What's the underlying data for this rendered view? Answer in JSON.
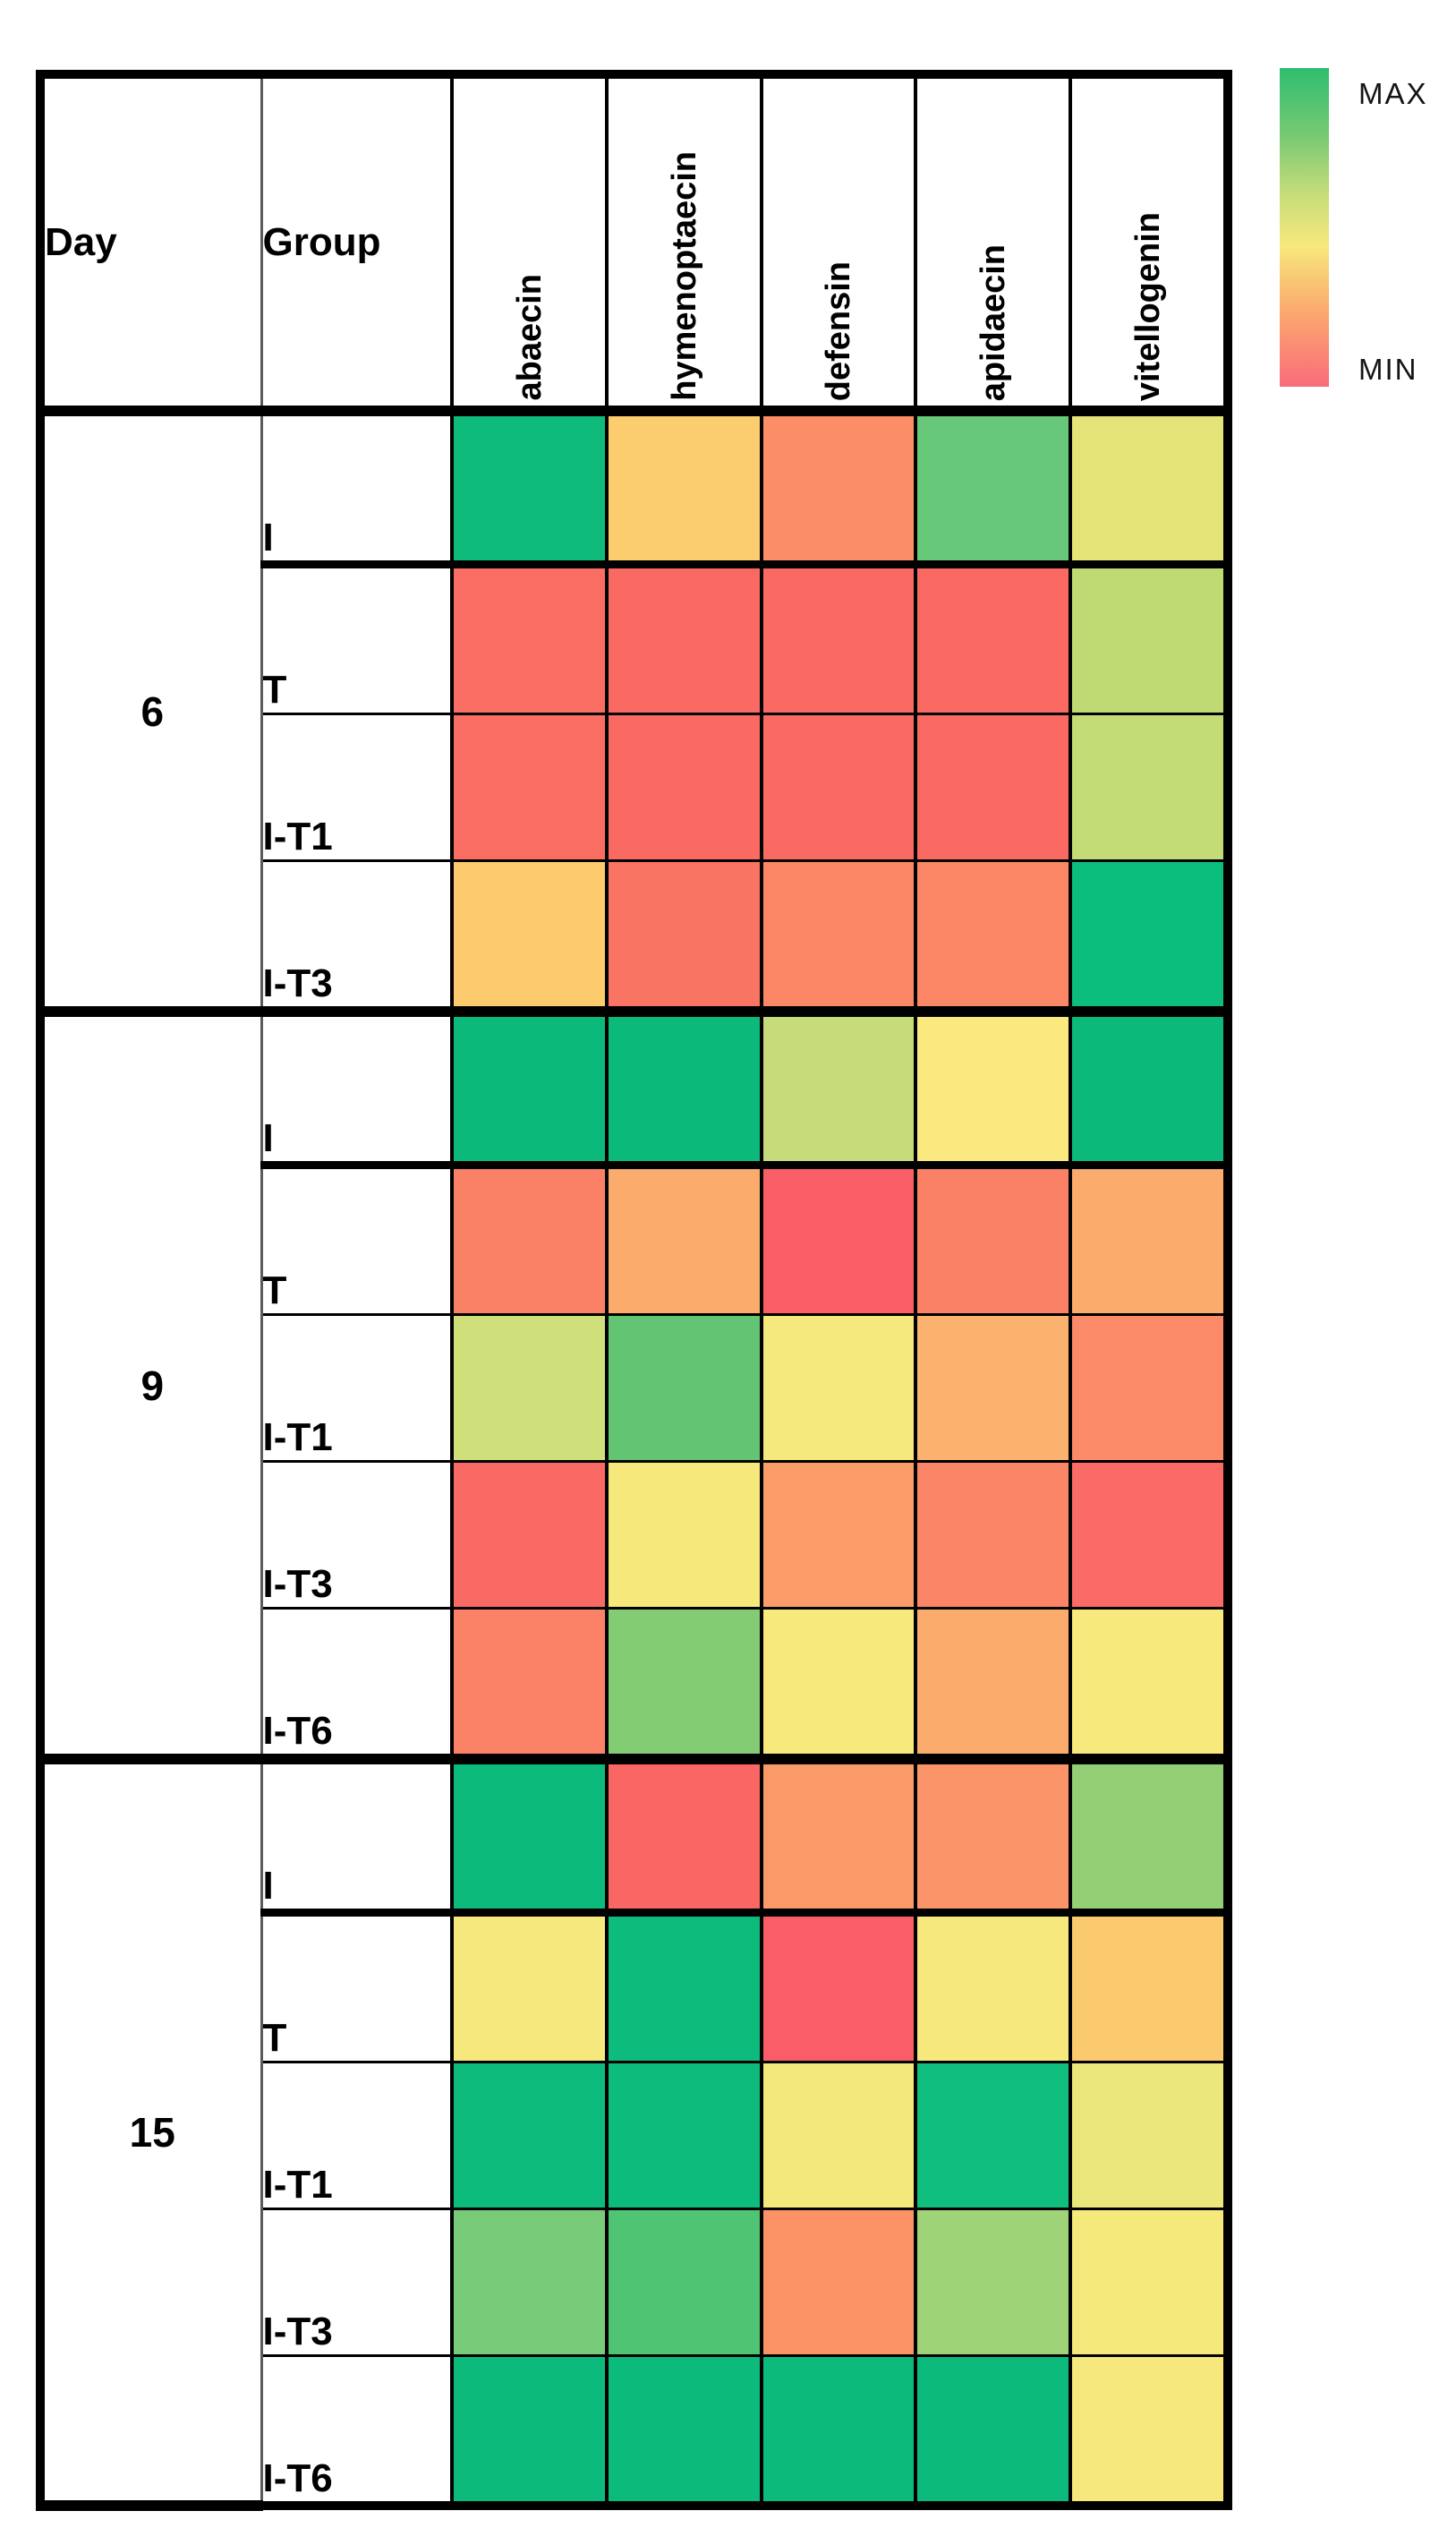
{
  "header": {
    "day_label": "Day",
    "group_label": "Group"
  },
  "legend": {
    "max_label": "MAX",
    "min_label": "MIN",
    "gradient_top_color": "#2ebd70",
    "gradient_mid_color": "#f7e87c",
    "gradient_bottom_color": "#f96c7a"
  },
  "chart_data": {
    "type": "heatmap",
    "title": "",
    "columns": [
      "abaecin",
      "hymenoptaecin",
      "defensin",
      "apidaecin",
      "vitellogenin"
    ],
    "row_dimensions": [
      "Day",
      "Group"
    ],
    "scale": {
      "max_label": "MAX",
      "max_color": "#0cbb7c",
      "min_label": "MIN",
      "min_color": "#fa5f68",
      "note": "cells encode relative expression from MIN (red) to MAX (green)"
    },
    "days": [
      {
        "day": "6",
        "groups": [
          {
            "group": "I",
            "cells": [
              "#0ebb7b",
              "#fccd6f",
              "#fb8e66",
              "#66c878",
              "#e5e478"
            ]
          },
          {
            "group": "T",
            "cells": [
              "#fa6d63",
              "#fa6a62",
              "#fa6a62",
              "#fa6a62",
              "#c0da73"
            ]
          },
          {
            "group": "I-T1",
            "cells": [
              "#fa6d63",
              "#fa6a62",
              "#fa6a62",
              "#fa6a62",
              "#c4dc76"
            ]
          },
          {
            "group": "I-T3",
            "cells": [
              "#fbcb6e",
              "#fa7463",
              "#fb8766",
              "#fb8766",
              "#0cbe7c"
            ]
          }
        ]
      },
      {
        "day": "9",
        "groups": [
          {
            "group": "I",
            "cells": [
              "#0bba7b",
              "#0bba7b",
              "#c6dc7b",
              "#f9e97e",
              "#0bba7b"
            ]
          },
          {
            "group": "T",
            "cells": [
              "#fa8166",
              "#fbac6d",
              "#fa5f68",
              "#fa8166",
              "#fbac6d"
            ]
          },
          {
            "group": "I-T1",
            "cells": [
              "#cfe07b",
              "#63c573",
              "#f5e87d",
              "#fbb26e",
              "#fb8a68"
            ]
          },
          {
            "group": "I-T3",
            "cells": [
              "#fa6a64",
              "#f7e87b",
              "#fb9c69",
              "#fa8667",
              "#fa6a66"
            ]
          },
          {
            "group": "I-T6",
            "cells": [
              "#fb8266",
              "#83cc74",
              "#f8e97c",
              "#fbac6d",
              "#f8e97c"
            ]
          }
        ]
      },
      {
        "day": "15",
        "groups": [
          {
            "group": "I",
            "cells": [
              "#0cbb7c",
              "#fa6663",
              "#fb9a69",
              "#fb9468",
              "#93cf74"
            ]
          },
          {
            "group": "T",
            "cells": [
              "#f6e87c",
              "#0dbc7c",
              "#fa5d67",
              "#f6e87c",
              "#fbc96e"
            ]
          },
          {
            "group": "I-T1",
            "cells": [
              "#0dbc7c",
              "#0dbc7c",
              "#f3e87b",
              "#10bf7e",
              "#ebe77d"
            ]
          },
          {
            "group": "I-T3",
            "cells": [
              "#77cb79",
              "#4fc573",
              "#fb9367",
              "#9ed378",
              "#f6e97c"
            ]
          },
          {
            "group": "I-T6",
            "cells": [
              "#0cbb7c",
              "#0cbb7c",
              "#0cbb7c",
              "#0cbb7c",
              "#f6e87c"
            ]
          }
        ]
      }
    ]
  }
}
